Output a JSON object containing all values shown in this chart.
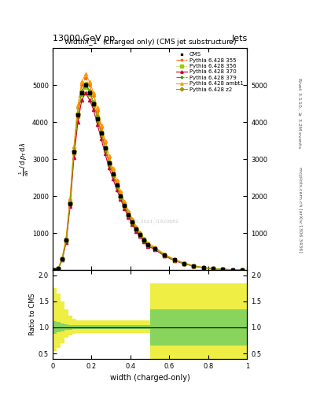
{
  "title_top": "13000 GeV pp",
  "title_right": "Jets",
  "plot_title": "Width$\\lambda\\_1^1$ (charged only) (CMS jet substructure)",
  "xlabel": "width (charged-only)",
  "ylabel_ratio": "Ratio to CMS",
  "right_label_top": "Rivet 3.1.10, $\\geq$ 3.2M events",
  "right_label_bot": "mcplots.cern.ch [arXiv:1306.3436]",
  "watermark": "CMS_2021_I1920682",
  "x_bins": [
    0.0,
    0.02,
    0.04,
    0.06,
    0.08,
    0.1,
    0.12,
    0.14,
    0.16,
    0.18,
    0.2,
    0.22,
    0.24,
    0.26,
    0.28,
    0.3,
    0.32,
    0.34,
    0.36,
    0.38,
    0.4,
    0.42,
    0.44,
    0.46,
    0.48,
    0.5,
    0.55,
    0.6,
    0.65,
    0.7,
    0.75,
    0.8,
    0.85,
    0.9,
    0.95,
    1.0
  ],
  "cms_values": [
    0.0,
    50,
    300,
    800,
    1800,
    3200,
    4200,
    4800,
    5000,
    4800,
    4500,
    4100,
    3700,
    3300,
    2900,
    2600,
    2300,
    2000,
    1750,
    1500,
    1300,
    1100,
    950,
    800,
    680,
    580,
    400,
    270,
    180,
    110,
    65,
    35,
    18,
    8,
    2
  ],
  "cms_color": "#000000",
  "series": [
    {
      "label": "Pythia 6.428 355",
      "color": "#ff6600",
      "marker": "*",
      "linestyle": "-.",
      "values": [
        0.0,
        55,
        320,
        850,
        1900,
        3300,
        4400,
        5000,
        5200,
        5000,
        4700,
        4300,
        3850,
        3450,
        3050,
        2700,
        2400,
        2100,
        1820,
        1570,
        1360,
        1160,
        1000,
        850,
        720,
        610,
        420,
        285,
        190,
        115,
        68,
        37,
        19,
        8,
        2
      ]
    },
    {
      "label": "Pythia 6.428 356",
      "color": "#99cc00",
      "marker": "s",
      "linestyle": ":",
      "values": [
        0.0,
        48,
        290,
        780,
        1780,
        3150,
        4150,
        4750,
        4950,
        4750,
        4450,
        4050,
        3650,
        3250,
        2850,
        2550,
        2250,
        1970,
        1720,
        1480,
        1280,
        1090,
        940,
        790,
        670,
        570,
        390,
        260,
        175,
        107,
        63,
        34,
        17,
        7,
        2
      ]
    },
    {
      "label": "Pythia 6.428 370",
      "color": "#cc0033",
      "marker": "^",
      "linestyle": "-",
      "values": [
        0.0,
        45,
        280,
        750,
        1720,
        3050,
        4000,
        4600,
        4800,
        4600,
        4350,
        3950,
        3550,
        3150,
        2770,
        2470,
        2180,
        1910,
        1660,
        1430,
        1240,
        1050,
        910,
        770,
        650,
        555,
        380,
        255,
        170,
        104,
        61,
        33,
        17,
        7,
        2
      ]
    },
    {
      "label": "Pythia 6.428 379",
      "color": "#339900",
      "marker": "*",
      "linestyle": "-.",
      "values": [
        0.0,
        52,
        310,
        820,
        1850,
        3200,
        4250,
        4850,
        5050,
        4850,
        4550,
        4150,
        3720,
        3320,
        2920,
        2600,
        2300,
        2010,
        1750,
        1510,
        1310,
        1110,
        960,
        810,
        690,
        585,
        402,
        270,
        180,
        110,
        65,
        35,
        18,
        8,
        2
      ]
    },
    {
      "label": "Pythia 6.428 ambt1",
      "color": "#ff9900",
      "marker": "^",
      "linestyle": "-",
      "values": [
        0.0,
        60,
        340,
        880,
        1950,
        3350,
        4450,
        5100,
        5300,
        5100,
        4800,
        4380,
        3930,
        3500,
        3080,
        2750,
        2430,
        2130,
        1850,
        1600,
        1380,
        1180,
        1020,
        860,
        730,
        620,
        430,
        290,
        193,
        118,
        70,
        38,
        19,
        8,
        2
      ]
    },
    {
      "label": "Pythia 6.428 z2",
      "color": "#999900",
      "marker": "D",
      "linestyle": "-",
      "values": [
        0.0,
        50,
        300,
        800,
        1820,
        3220,
        4220,
        4820,
        5020,
        4820,
        4520,
        4120,
        3700,
        3300,
        2900,
        2580,
        2280,
        1990,
        1740,
        1500,
        1300,
        1100,
        950,
        800,
        680,
        578,
        398,
        268,
        178,
        109,
        64,
        34,
        17,
        7,
        2
      ]
    }
  ],
  "ratio_green_low": [
    0.88,
    0.91,
    0.93,
    0.95,
    0.96,
    0.97,
    0.97,
    0.97,
    0.97,
    0.97,
    0.97,
    0.97,
    0.97,
    0.97,
    0.97,
    0.97,
    0.97,
    0.97,
    0.97,
    0.97,
    0.97,
    0.97,
    0.97,
    0.97,
    0.97,
    0.65,
    0.65,
    0.65,
    0.65,
    0.65,
    0.65,
    0.65,
    0.65,
    0.65,
    0.65
  ],
  "ratio_green_high": [
    1.12,
    1.1,
    1.08,
    1.06,
    1.05,
    1.04,
    1.04,
    1.04,
    1.04,
    1.04,
    1.04,
    1.04,
    1.04,
    1.04,
    1.04,
    1.04,
    1.04,
    1.04,
    1.04,
    1.04,
    1.04,
    1.04,
    1.04,
    1.04,
    1.04,
    1.35,
    1.35,
    1.35,
    1.35,
    1.35,
    1.35,
    1.35,
    1.35,
    1.35,
    1.35
  ],
  "ratio_yellow_low": [
    0.55,
    0.6,
    0.7,
    0.8,
    0.85,
    0.88,
    0.9,
    0.9,
    0.9,
    0.9,
    0.9,
    0.9,
    0.9,
    0.9,
    0.9,
    0.9,
    0.9,
    0.9,
    0.9,
    0.9,
    0.9,
    0.9,
    0.9,
    0.9,
    0.9,
    0.4,
    0.4,
    0.4,
    0.4,
    0.4,
    0.4,
    0.4,
    0.4,
    0.4,
    0.4
  ],
  "ratio_yellow_high": [
    1.75,
    1.65,
    1.5,
    1.35,
    1.22,
    1.16,
    1.14,
    1.13,
    1.13,
    1.13,
    1.13,
    1.13,
    1.13,
    1.13,
    1.13,
    1.13,
    1.13,
    1.13,
    1.13,
    1.13,
    1.13,
    1.13,
    1.13,
    1.13,
    1.13,
    1.85,
    1.85,
    1.85,
    1.85,
    1.85,
    1.85,
    1.85,
    1.85,
    1.85,
    1.85
  ],
  "ylim_main": [
    0,
    6000
  ],
  "ylim_ratio": [
    0.4,
    2.1
  ],
  "yticks_main": [
    1000,
    2000,
    3000,
    4000,
    5000
  ],
  "yticks_ratio": [
    0.5,
    1.0,
    1.5,
    2.0
  ],
  "green_color": "#66cc66",
  "yellow_color": "#eeee44",
  "background_color": "#ffffff"
}
